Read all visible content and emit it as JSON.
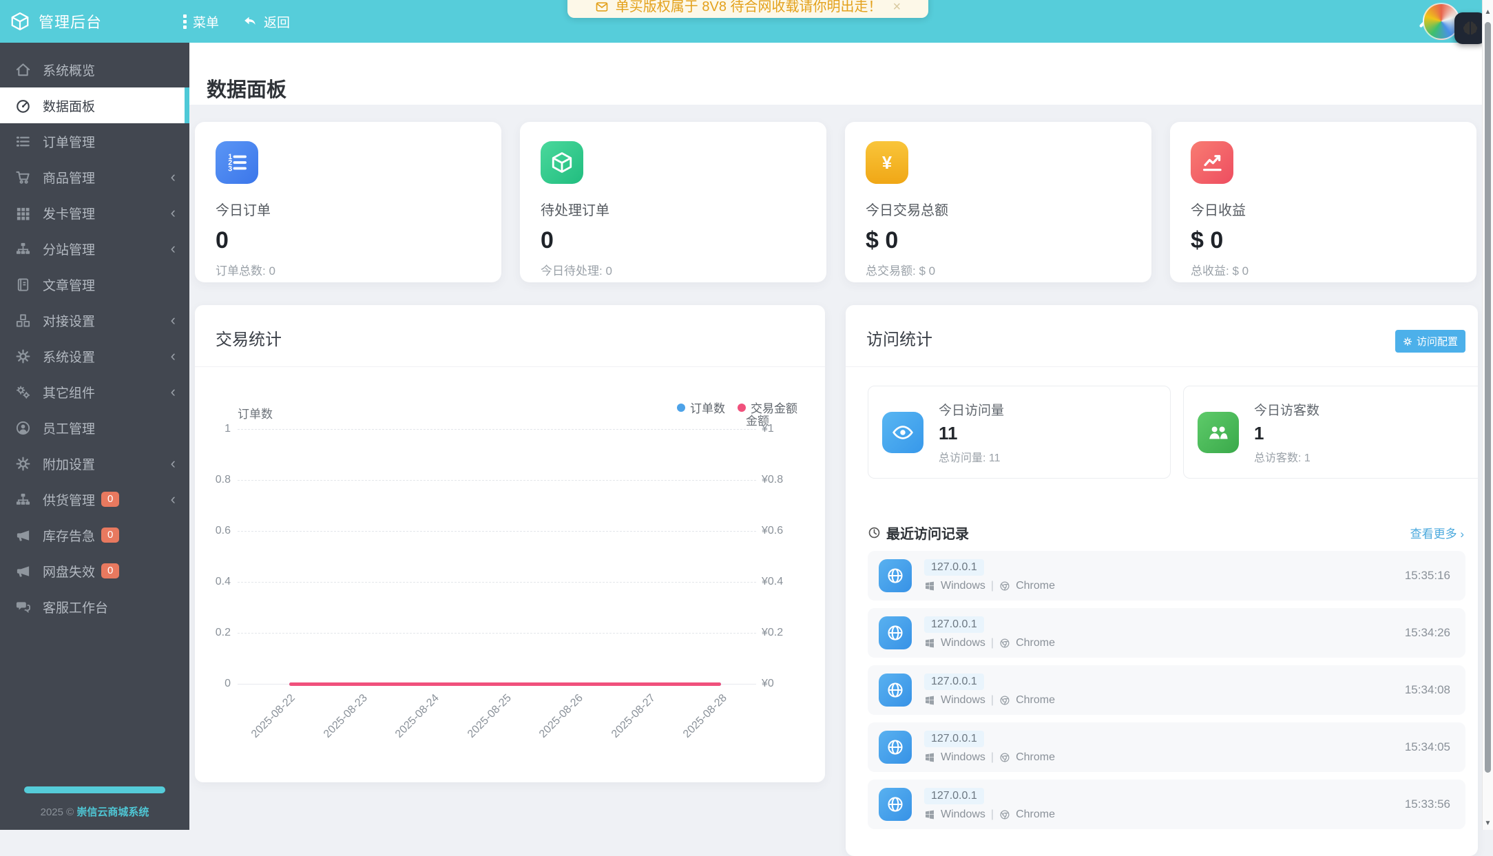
{
  "colors": {
    "accent_teal": "#56cdda",
    "sidebar_bg": "#424750",
    "badge_orange": "#e8795f",
    "chart_orders_blue": "#4da2e8",
    "chart_amount_pink": "#f0517c",
    "toast_text_orange": "#e3a11c",
    "config_button_blue": "#4cb0ea"
  },
  "topbar": {
    "title": "管理后台",
    "menu_label": "菜单",
    "back_label": "返回",
    "icons": [
      "cube-logo",
      "vertical-dots",
      "reply-arrow",
      "wrench",
      "avatar",
      "brain-overlay"
    ]
  },
  "toast": {
    "text": "单买版权属于 8V8 待合网收载请你明出走！",
    "close_label": "×"
  },
  "sidebar": {
    "items": [
      {
        "label": "系统概览",
        "icon": "home"
      },
      {
        "label": "数据面板",
        "icon": "gauge",
        "active": true
      },
      {
        "label": "订单管理",
        "icon": "list"
      },
      {
        "label": "商品管理",
        "icon": "cart",
        "chevron": true
      },
      {
        "label": "发卡管理",
        "icon": "grid",
        "chevron": true
      },
      {
        "label": "分站管理",
        "icon": "sitemap",
        "chevron": true
      },
      {
        "label": "文章管理",
        "icon": "book"
      },
      {
        "label": "对接设置",
        "icon": "cubes",
        "chevron": true
      },
      {
        "label": "系统设置",
        "icon": "gear",
        "chevron": true
      },
      {
        "label": "其它组件",
        "icon": "gears",
        "chevron": true
      },
      {
        "label": "员工管理",
        "icon": "user"
      },
      {
        "label": "附加设置",
        "icon": "gear",
        "chevron": true
      },
      {
        "label": "供货管理",
        "icon": "sitemap",
        "badge": "0",
        "chevron": true
      },
      {
        "label": "库存告急",
        "icon": "megaphone",
        "badge": "0"
      },
      {
        "label": "网盘失效",
        "icon": "megaphone",
        "badge": "0"
      },
      {
        "label": "客服工作台",
        "icon": "chat"
      }
    ],
    "footer": {
      "year": "2025 ©",
      "brand": "崇信云商城系统"
    }
  },
  "page": {
    "title": "数据面板"
  },
  "stat_cards": [
    {
      "icon": "list-ol",
      "color": "blue",
      "label": "今日订单",
      "value": "0",
      "sub": "订单总数: 0"
    },
    {
      "icon": "cube",
      "color": "green",
      "label": "待处理订单",
      "value": "0",
      "sub": "今日待处理: 0"
    },
    {
      "icon": "yen",
      "color": "yellow",
      "label": "今日交易总额",
      "value": "$ 0",
      "sub": "总交易额: $ 0"
    },
    {
      "icon": "chart",
      "color": "red",
      "label": "今日收益",
      "value": "$ 0",
      "sub": "总收益: $ 0"
    }
  ],
  "trade_panel": {
    "title": "交易统计"
  },
  "chart_data": {
    "type": "line",
    "x": [
      "2025-08-22",
      "2025-08-23",
      "2025-08-24",
      "2025-08-25",
      "2025-08-26",
      "2025-08-27",
      "2025-08-28"
    ],
    "series": [
      {
        "name": "订单数",
        "color": "#4da2e8",
        "axis": "left",
        "values": [
          0,
          0,
          0,
          0,
          0,
          0,
          0
        ]
      },
      {
        "name": "交易金额",
        "color": "#f0517c",
        "axis": "right",
        "values": [
          0,
          0,
          0,
          0,
          0,
          0,
          0
        ]
      }
    ],
    "left_axis": {
      "title": "订单数",
      "ticks": [
        "1",
        "0.8",
        "0.6",
        "0.4",
        "0.2",
        "0"
      ],
      "range": [
        0,
        1
      ]
    },
    "right_axis": {
      "title": "金额",
      "ticks": [
        "¥1",
        "¥0.8",
        "¥0.6",
        "¥0.4",
        "¥0.2",
        "¥0"
      ]
    },
    "grid": "horizontal-dashed",
    "legend_position": "top-right"
  },
  "visit_panel": {
    "title": "访问统计",
    "config_button": "访问配置",
    "stats": [
      {
        "icon": "eye",
        "color": "blue",
        "label": "今日访问量",
        "value": "11",
        "sub": "总访问量: 11"
      },
      {
        "icon": "users",
        "color": "green",
        "label": "今日访客数",
        "value": "1",
        "sub": "总访客数: 1"
      }
    ],
    "records_title": "最近访问记录",
    "more_link": "查看更多",
    "more_arrow": "›",
    "env_separator": "|",
    "records": [
      {
        "ip": "127.0.0.1",
        "os": "Windows",
        "browser": "Chrome",
        "time": "15:35:16"
      },
      {
        "ip": "127.0.0.1",
        "os": "Windows",
        "browser": "Chrome",
        "time": "15:34:26"
      },
      {
        "ip": "127.0.0.1",
        "os": "Windows",
        "browser": "Chrome",
        "time": "15:34:08"
      },
      {
        "ip": "127.0.0.1",
        "os": "Windows",
        "browser": "Chrome",
        "time": "15:34:05"
      },
      {
        "ip": "127.0.0.1",
        "os": "Windows",
        "browser": "Chrome",
        "time": "15:33:56"
      }
    ]
  },
  "scrollbar": {
    "up_arrow": "▲",
    "down_arrow": "▼"
  }
}
